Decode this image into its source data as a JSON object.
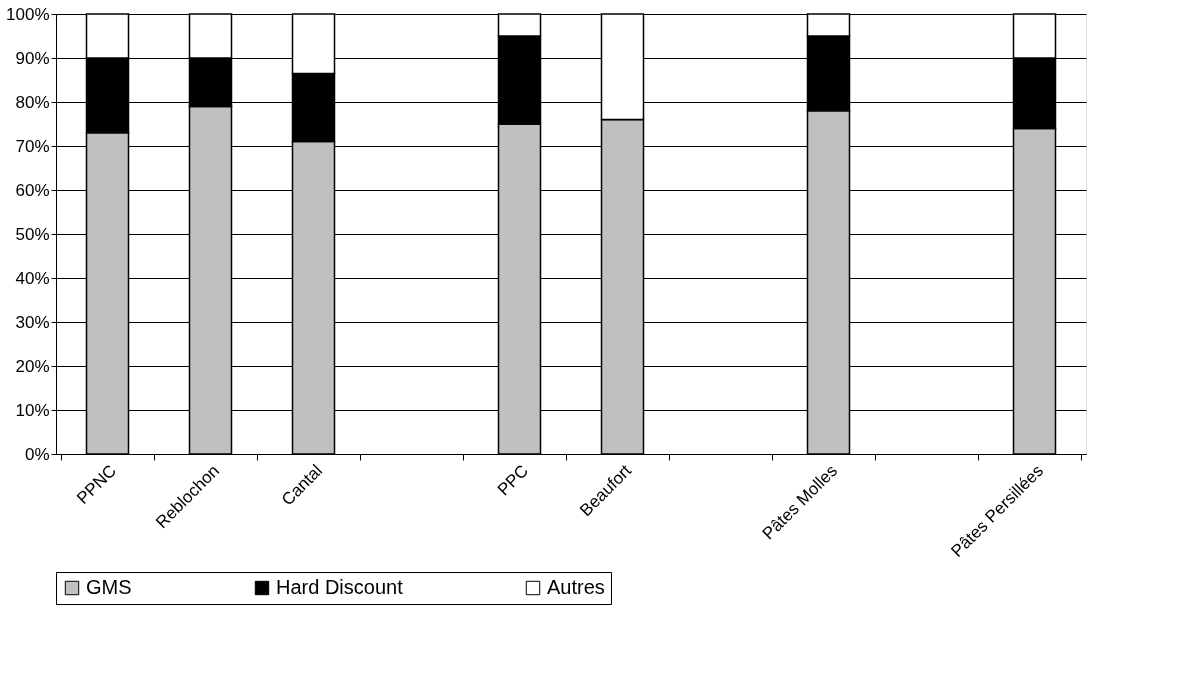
{
  "chart_data": {
    "type": "bar",
    "stacked": true,
    "categories": [
      "PPNC",
      "Reblochon",
      "Cantal",
      null,
      "PPC",
      "Beaufort",
      null,
      "Pâtes Molles",
      null,
      "Pâtes Persillées"
    ],
    "series": [
      {
        "name": "GMS",
        "color": "#c0c0c0",
        "values": [
          73,
          79,
          71,
          null,
          75,
          76,
          null,
          78,
          null,
          74
        ]
      },
      {
        "name": "Hard Discount",
        "color": "#000000",
        "values": [
          17,
          11,
          15.5,
          null,
          20,
          0,
          null,
          17,
          null,
          16
        ]
      },
      {
        "name": "Autres",
        "color": "#ffffff",
        "values": [
          10,
          10,
          13.5,
          null,
          5,
          24,
          null,
          5,
          null,
          10
        ]
      }
    ],
    "ylim": [
      0,
      100
    ],
    "yticks": [
      {
        "value": 0,
        "label": "0%"
      },
      {
        "value": 10,
        "label": "10%"
      },
      {
        "value": 20,
        "label": "20%"
      },
      {
        "value": 30,
        "label": "30%"
      },
      {
        "value": 40,
        "label": "40%"
      },
      {
        "value": 50,
        "label": "50%"
      },
      {
        "value": 60,
        "label": "60%"
      },
      {
        "value": 70,
        "label": "70%"
      },
      {
        "value": 80,
        "label": "80%"
      },
      {
        "value": 90,
        "label": "90%"
      },
      {
        "value": 100,
        "label": "100%"
      }
    ],
    "grid": "y",
    "legend": "bottom"
  }
}
